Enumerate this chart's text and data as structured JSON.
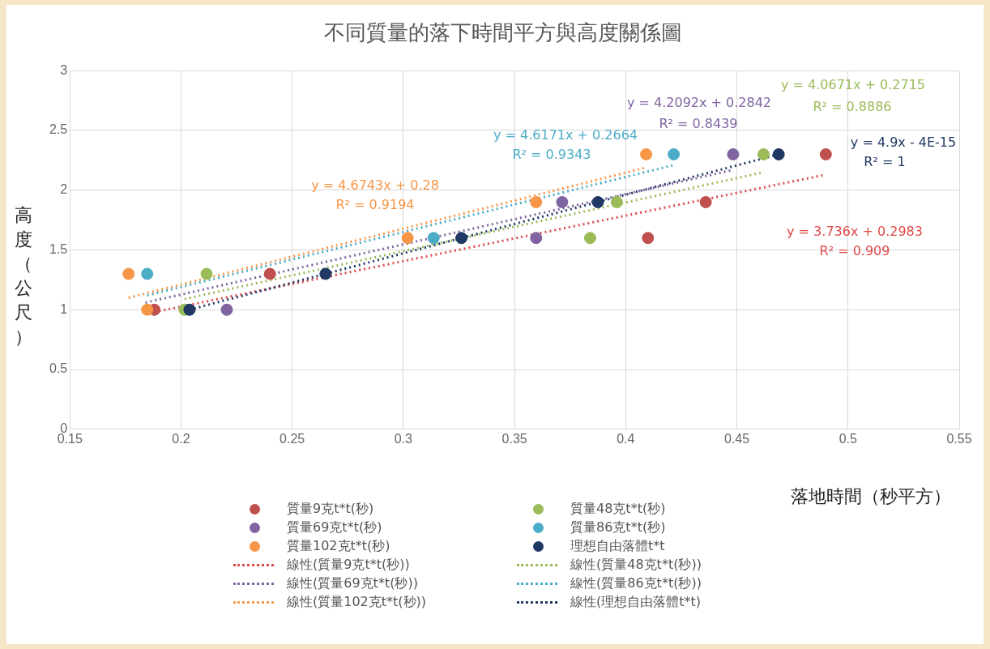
{
  "chart_data": {
    "type": "scatter",
    "title": "不同質量的落下時間平方與高度關係圖",
    "xlabel": "落地時間（秒平方）",
    "ylabel": "高度（公尺）",
    "xlim": [
      0.15,
      0.55
    ],
    "xticks": [
      0.15,
      0.2,
      0.25,
      0.3,
      0.35,
      0.4,
      0.45,
      0.5,
      0.55
    ],
    "ylim": [
      0,
      3
    ],
    "yticks": [
      0,
      0.5,
      1,
      1.5,
      2,
      2.5,
      3
    ],
    "grid": true,
    "legend": "bottom",
    "marker": "circle",
    "series": [
      {
        "name": "質量9克t*t(秒)",
        "color": "#c0504d",
        "x": [
          0.188,
          0.24,
          0.41,
          0.436,
          0.49
        ],
        "values": [
          1,
          1.3,
          1.6,
          1.9,
          2.3
        ]
      },
      {
        "name": "質量48克t*t(秒)",
        "color": "#9bbb59",
        "x": [
          0.2016,
          0.2115,
          0.384,
          0.396,
          0.462
        ],
        "values": [
          1,
          1.3,
          1.6,
          1.9,
          2.3
        ]
      },
      {
        "name": "質量69克t*t(秒)",
        "color": "#8064a2",
        "x": [
          0.2206,
          0.3597,
          0.3714,
          0.4483
        ],
        "values": [
          1,
          1.6,
          1.9,
          2.3
        ]
      },
      {
        "name": "質量86克t*t(秒)",
        "color": "#4bacc6",
        "x": [
          0.1848,
          0.3136,
          0.4216
        ],
        "values": [
          1.3,
          1.6,
          2.3
        ]
      },
      {
        "name": "質量102克t*t(秒)",
        "color": "#f79646",
        "x": [
          0.1764,
          0.1848,
          0.3019,
          0.3597,
          0.4092
        ],
        "values": [
          1.3,
          1,
          1.6,
          1.9,
          2.3
        ]
      },
      {
        "name": "理想自由落體t*t",
        "color": "#1f3864",
        "x": [
          0.2038,
          0.265,
          0.3261,
          0.3875,
          0.4688
        ],
        "values": [
          1,
          1.3,
          1.6,
          1.9,
          2.3
        ]
      },
      {
        "name": "線性(質量9克t*t(秒))",
        "type": "line",
        "marker": "none",
        "line_style": "dotted",
        "color": "#e04848",
        "x": [
          0.188,
          0.49
        ],
        "values": [
          0.98,
          2.13
        ]
      },
      {
        "name": "線性(質量48克t*t(秒))",
        "type": "line",
        "marker": "none",
        "line_style": "dotted",
        "color": "#9bbb59",
        "x": [
          0.2016,
          0.462
        ],
        "values": [
          1.09,
          2.15
        ]
      },
      {
        "name": "線性(質量69克t*t(秒))",
        "type": "line",
        "marker": "none",
        "line_style": "dotted",
        "color": "#8064a2",
        "x": [
          0.184,
          0.4483
        ],
        "values": [
          1.06,
          2.17
        ]
      },
      {
        "name": "線性(質量86克t*t(秒))",
        "type": "line",
        "marker": "none",
        "line_style": "dotted",
        "color": "#4bacc6",
        "x": [
          0.1848,
          0.4216
        ],
        "values": [
          1.12,
          2.21
        ]
      },
      {
        "name": "線性(質量102克t*t(秒))",
        "type": "line",
        "marker": "none",
        "line_style": "dotted",
        "color": "#f79646",
        "x": [
          0.1764,
          0.4092
        ],
        "values": [
          1.1,
          2.19
        ]
      },
      {
        "name": "線性(理想自由落體t*t)",
        "type": "line",
        "marker": "none",
        "line_style": "dotted",
        "color": "#1f3864",
        "x": [
          0.2038,
          0.4688
        ],
        "values": [
          1,
          2.3
        ]
      }
    ],
    "annotations": [
      "y = 3.736x + 0.2983",
      "R² = 0.909",
      "y = 4.0671x + 0.2715",
      "R² = 0.8886",
      "y = 4.2092x + 0.2842",
      "R² = 0.8439",
      "y = 4.6171x + 0.2664",
      "R² = 0.9343",
      "y = 4.6743x + 0.28",
      "R² = 0.9194",
      "y = 4.9x - 4E-15",
      "R² = 1"
    ]
  }
}
